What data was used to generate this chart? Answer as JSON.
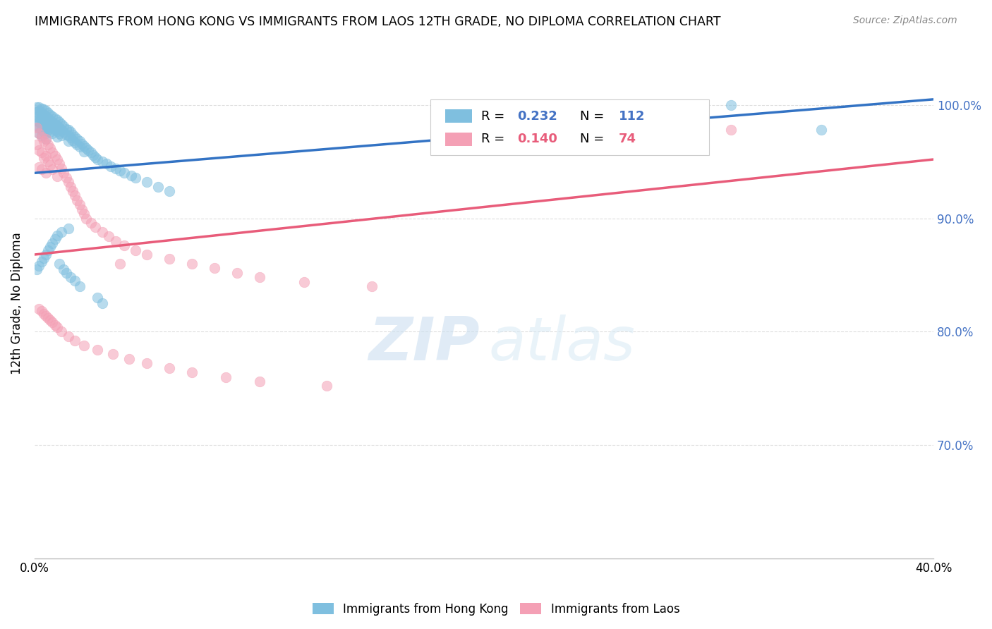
{
  "title": "IMMIGRANTS FROM HONG KONG VS IMMIGRANTS FROM LAOS 12TH GRADE, NO DIPLOMA CORRELATION CHART",
  "source": "Source: ZipAtlas.com",
  "ylabel": "12th Grade, No Diploma",
  "x_min": 0.0,
  "x_max": 0.4,
  "y_min": 0.6,
  "y_max": 1.05,
  "x_tick_positions": [
    0.0,
    0.1,
    0.2,
    0.3,
    0.4
  ],
  "x_tick_labels": [
    "0.0%",
    "",
    "",
    "",
    "40.0%"
  ],
  "y_tick_positions": [
    0.7,
    0.8,
    0.9,
    1.0
  ],
  "y_tick_labels": [
    "70.0%",
    "80.0%",
    "90.0%",
    "100.0%"
  ],
  "hk_color": "#7fbfdf",
  "laos_color": "#f4a0b5",
  "hk_line_color": "#3373c4",
  "laos_line_color": "#e85c7a",
  "hk_R": 0.232,
  "hk_N": 112,
  "laos_R": 0.14,
  "laos_N": 74,
  "legend_label_hk": "Immigrants from Hong Kong",
  "legend_label_laos": "Immigrants from Laos",
  "watermark_zip": "ZIP",
  "watermark_atlas": "atlas",
  "background_color": "#ffffff",
  "grid_color": "#dddddd",
  "hk_line_x0": 0.0,
  "hk_line_x1": 0.4,
  "hk_line_y0": 0.94,
  "hk_line_y1": 1.005,
  "laos_line_x0": 0.0,
  "laos_line_x1": 0.4,
  "laos_line_y0": 0.868,
  "laos_line_y1": 0.952,
  "hk_scatter_x": [
    0.001,
    0.001,
    0.001,
    0.001,
    0.001,
    0.002,
    0.002,
    0.002,
    0.002,
    0.002,
    0.002,
    0.003,
    0.003,
    0.003,
    0.003,
    0.003,
    0.003,
    0.004,
    0.004,
    0.004,
    0.004,
    0.004,
    0.005,
    0.005,
    0.005,
    0.005,
    0.005,
    0.005,
    0.006,
    0.006,
    0.006,
    0.006,
    0.007,
    0.007,
    0.007,
    0.007,
    0.008,
    0.008,
    0.008,
    0.008,
    0.009,
    0.009,
    0.009,
    0.01,
    0.01,
    0.01,
    0.01,
    0.011,
    0.011,
    0.011,
    0.012,
    0.012,
    0.012,
    0.013,
    0.013,
    0.014,
    0.014,
    0.015,
    0.015,
    0.015,
    0.016,
    0.016,
    0.017,
    0.017,
    0.018,
    0.018,
    0.019,
    0.019,
    0.02,
    0.02,
    0.021,
    0.022,
    0.022,
    0.023,
    0.024,
    0.025,
    0.026,
    0.027,
    0.028,
    0.03,
    0.032,
    0.034,
    0.036,
    0.038,
    0.04,
    0.043,
    0.045,
    0.05,
    0.055,
    0.06,
    0.001,
    0.002,
    0.003,
    0.004,
    0.005,
    0.006,
    0.007,
    0.008,
    0.009,
    0.01,
    0.012,
    0.015,
    0.31,
    0.35,
    0.028,
    0.03,
    0.02,
    0.018,
    0.016,
    0.014,
    0.013,
    0.011
  ],
  "hk_scatter_y": [
    0.998,
    0.994,
    0.99,
    0.986,
    0.982,
    0.998,
    0.995,
    0.99,
    0.985,
    0.98,
    0.975,
    0.997,
    0.993,
    0.988,
    0.983,
    0.978,
    0.973,
    0.996,
    0.991,
    0.986,
    0.981,
    0.976,
    0.995,
    0.99,
    0.985,
    0.98,
    0.975,
    0.97,
    0.993,
    0.988,
    0.983,
    0.978,
    0.991,
    0.986,
    0.981,
    0.976,
    0.99,
    0.985,
    0.98,
    0.975,
    0.988,
    0.983,
    0.978,
    0.987,
    0.982,
    0.977,
    0.972,
    0.985,
    0.98,
    0.975,
    0.983,
    0.978,
    0.973,
    0.981,
    0.976,
    0.979,
    0.974,
    0.978,
    0.973,
    0.968,
    0.976,
    0.971,
    0.974,
    0.969,
    0.972,
    0.967,
    0.97,
    0.965,
    0.968,
    0.963,
    0.966,
    0.964,
    0.959,
    0.962,
    0.96,
    0.958,
    0.956,
    0.954,
    0.952,
    0.95,
    0.948,
    0.946,
    0.944,
    0.942,
    0.94,
    0.938,
    0.936,
    0.932,
    0.928,
    0.924,
    0.855,
    0.858,
    0.862,
    0.865,
    0.868,
    0.872,
    0.875,
    0.878,
    0.882,
    0.885,
    0.888,
    0.891,
    1.0,
    0.978,
    0.83,
    0.825,
    0.84,
    0.845,
    0.848,
    0.852,
    0.855,
    0.86
  ],
  "laos_scatter_x": [
    0.001,
    0.001,
    0.002,
    0.002,
    0.002,
    0.003,
    0.003,
    0.003,
    0.004,
    0.004,
    0.005,
    0.005,
    0.005,
    0.006,
    0.006,
    0.007,
    0.007,
    0.008,
    0.008,
    0.009,
    0.01,
    0.01,
    0.011,
    0.012,
    0.013,
    0.014,
    0.015,
    0.016,
    0.017,
    0.018,
    0.019,
    0.02,
    0.021,
    0.022,
    0.023,
    0.025,
    0.027,
    0.03,
    0.033,
    0.036,
    0.04,
    0.045,
    0.05,
    0.06,
    0.07,
    0.08,
    0.09,
    0.1,
    0.12,
    0.15,
    0.002,
    0.003,
    0.004,
    0.005,
    0.006,
    0.007,
    0.008,
    0.009,
    0.01,
    0.012,
    0.015,
    0.018,
    0.022,
    0.028,
    0.035,
    0.042,
    0.05,
    0.06,
    0.07,
    0.085,
    0.1,
    0.13,
    0.31,
    0.038
  ],
  "laos_scatter_y": [
    0.98,
    0.965,
    0.975,
    0.96,
    0.945,
    0.972,
    0.958,
    0.943,
    0.968,
    0.953,
    0.97,
    0.955,
    0.94,
    0.965,
    0.95,
    0.962,
    0.947,
    0.958,
    0.943,
    0.955,
    0.952,
    0.937,
    0.948,
    0.944,
    0.94,
    0.936,
    0.932,
    0.928,
    0.924,
    0.92,
    0.916,
    0.912,
    0.908,
    0.904,
    0.9,
    0.896,
    0.892,
    0.888,
    0.884,
    0.88,
    0.876,
    0.872,
    0.868,
    0.864,
    0.86,
    0.856,
    0.852,
    0.848,
    0.844,
    0.84,
    0.82,
    0.818,
    0.816,
    0.814,
    0.812,
    0.81,
    0.808,
    0.806,
    0.804,
    0.8,
    0.796,
    0.792,
    0.788,
    0.784,
    0.78,
    0.776,
    0.772,
    0.768,
    0.764,
    0.76,
    0.756,
    0.752,
    0.978,
    0.86
  ]
}
